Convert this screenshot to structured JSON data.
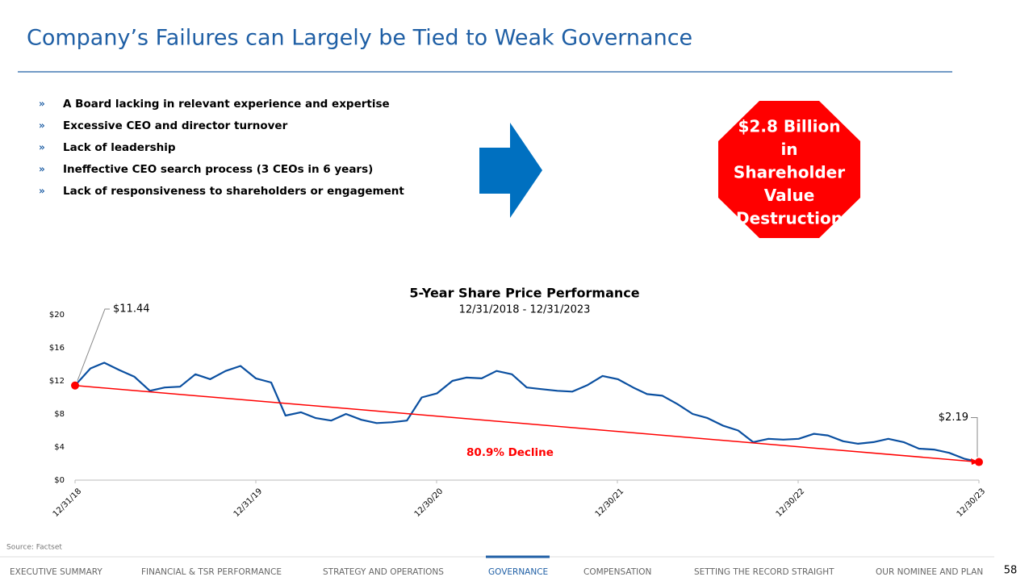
{
  "header": {
    "title": "Company’s Failures can Largely be Tied to Weak Governance"
  },
  "bullets": {
    "marker": "»",
    "items": [
      "A Board lacking in relevant experience and expertise",
      "Excessive CEO and director turnover",
      "Lack of leadership",
      "Ineffective CEO search process (3 CEOs in 6 years)",
      "Lack of responsiveness to shareholders or engagement"
    ]
  },
  "callout": {
    "lines": [
      "$2.8 Billion",
      "in",
      "Shareholder",
      "Value",
      "Destruction"
    ]
  },
  "chart_data": {
    "type": "line",
    "title": "5-Year Share Price Performance",
    "subtitle": "12/31/2018 - 12/31/2023",
    "color": "#0a4fa0",
    "trend_color": "#ff0000",
    "x": [
      "2018-12-31",
      "2019-01-31",
      "2019-02-28",
      "2019-03-31",
      "2019-04-30",
      "2019-05-31",
      "2019-06-30",
      "2019-07-31",
      "2019-08-31",
      "2019-09-30",
      "2019-10-31",
      "2019-11-30",
      "2019-12-31",
      "2020-01-31",
      "2020-02-29",
      "2020-03-31",
      "2020-04-30",
      "2020-05-31",
      "2020-06-30",
      "2020-07-31",
      "2020-08-31",
      "2020-09-30",
      "2020-10-31",
      "2020-11-30",
      "2020-12-31",
      "2021-01-31",
      "2021-02-28",
      "2021-03-31",
      "2021-04-30",
      "2021-05-31",
      "2021-06-30",
      "2021-07-31",
      "2021-08-31",
      "2021-09-30",
      "2021-10-31",
      "2021-11-30",
      "2021-12-31",
      "2022-01-31",
      "2022-02-28",
      "2022-03-31",
      "2022-04-30",
      "2022-05-31",
      "2022-06-30",
      "2022-07-31",
      "2022-08-31",
      "2022-09-30",
      "2022-10-31",
      "2022-11-30",
      "2022-12-31",
      "2023-01-31",
      "2023-02-28",
      "2023-03-31",
      "2023-04-30",
      "2023-05-31",
      "2023-06-30",
      "2023-07-31",
      "2023-08-31",
      "2023-09-30",
      "2023-10-31",
      "2023-11-30",
      "2023-12-30"
    ],
    "values": [
      11.44,
      13.5,
      14.2,
      13.3,
      12.5,
      10.8,
      11.2,
      11.3,
      12.8,
      12.2,
      13.2,
      13.8,
      12.3,
      11.8,
      7.8,
      8.2,
      7.5,
      7.2,
      8.0,
      7.3,
      6.9,
      7.0,
      7.2,
      10.0,
      10.5,
      12.0,
      12.4,
      12.3,
      13.2,
      12.8,
      11.2,
      11.0,
      10.8,
      10.7,
      11.5,
      12.6,
      12.2,
      11.2,
      10.4,
      10.2,
      9.2,
      8.0,
      7.5,
      6.6,
      6.0,
      4.6,
      5.0,
      4.9,
      5.0,
      5.6,
      5.4,
      4.7,
      4.4,
      4.6,
      5.0,
      4.6,
      3.8,
      3.7,
      3.3,
      2.6,
      2.19
    ],
    "xlim": [
      "2018-12-31",
      "2023-12-30"
    ],
    "xticks": [
      {
        "value": "2018-12-31",
        "label": "12/31/18"
      },
      {
        "value": "2019-12-31",
        "label": "12/31/19"
      },
      {
        "value": "2020-12-30",
        "label": "12/30/20"
      },
      {
        "value": "2021-12-30",
        "label": "12/30/21"
      },
      {
        "value": "2022-12-30",
        "label": "12/30/22"
      },
      {
        "value": "2023-12-30",
        "label": "12/30/23"
      }
    ],
    "ylim": [
      0,
      20
    ],
    "yticks": [
      {
        "value": 0,
        "label": "$0"
      },
      {
        "value": 4,
        "label": "$4"
      },
      {
        "value": 8,
        "label": "$8"
      },
      {
        "value": 12,
        "label": "$12"
      },
      {
        "value": 16,
        "label": "$16"
      },
      {
        "value": 20,
        "label": "$20"
      }
    ],
    "start_label": "$11.44",
    "end_label": "$2.19",
    "trend_label": "80.9% Decline"
  },
  "footer": {
    "source": "Source: Factset",
    "page": "58"
  },
  "nav": {
    "items": [
      "EXECUTIVE SUMMARY",
      "FINANCIAL & TSR PERFORMANCE",
      "STRATEGY AND OPERATIONS",
      "GOVERNANCE",
      "COMPENSATION",
      "SETTING THE RECORD STRAIGHT",
      "OUR NOMINEE AND PLAN"
    ],
    "active": 3
  }
}
